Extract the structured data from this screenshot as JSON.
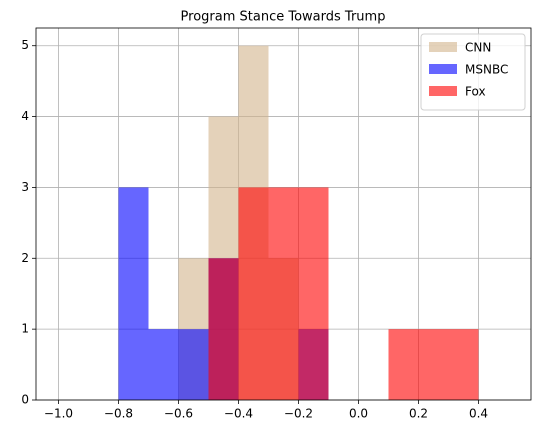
{
  "chart_data": {
    "type": "histogram",
    "title": "Program Stance Towards Trump",
    "bins": [
      -1.0,
      -0.9,
      -0.8,
      -0.7,
      -0.6,
      -0.5,
      -0.4,
      -0.3,
      -0.2,
      -0.1,
      0.0,
      0.1,
      0.2,
      0.3,
      0.4,
      0.5
    ],
    "series": [
      {
        "name": "CNN",
        "color": "#d2b48c",
        "values": [
          0,
          0,
          0,
          0,
          2,
          4,
          5,
          2,
          0,
          0,
          0,
          0,
          0,
          0,
          0
        ]
      },
      {
        "name": "MSNBC",
        "color": "#0000ff",
        "values": [
          0,
          0,
          3,
          1,
          1,
          2,
          0,
          0,
          1,
          0,
          0,
          0,
          0,
          0,
          0
        ]
      },
      {
        "name": "Fox",
        "color": "#ff0000",
        "values": [
          0,
          0,
          0,
          0,
          0,
          2,
          3,
          3,
          3,
          0,
          0,
          1,
          1,
          1,
          0
        ]
      }
    ],
    "opacity": 0.6,
    "xlim": [
      -1.075,
      0.575
    ],
    "xticks": [
      {
        "value": -1.0,
        "label": "−1.0"
      },
      {
        "value": -0.8,
        "label": "−0.8"
      },
      {
        "value": -0.6,
        "label": "−0.6"
      },
      {
        "value": -0.4,
        "label": "−0.4"
      },
      {
        "value": -0.2,
        "label": "−0.2"
      },
      {
        "value": 0,
        "label": "0.0"
      },
      0.2,
      0.4
    ],
    "ylim": [
      0,
      5.25
    ],
    "yticks": [
      0,
      1,
      2,
      3,
      4,
      5
    ],
    "grid": true,
    "legend": "upper right"
  }
}
